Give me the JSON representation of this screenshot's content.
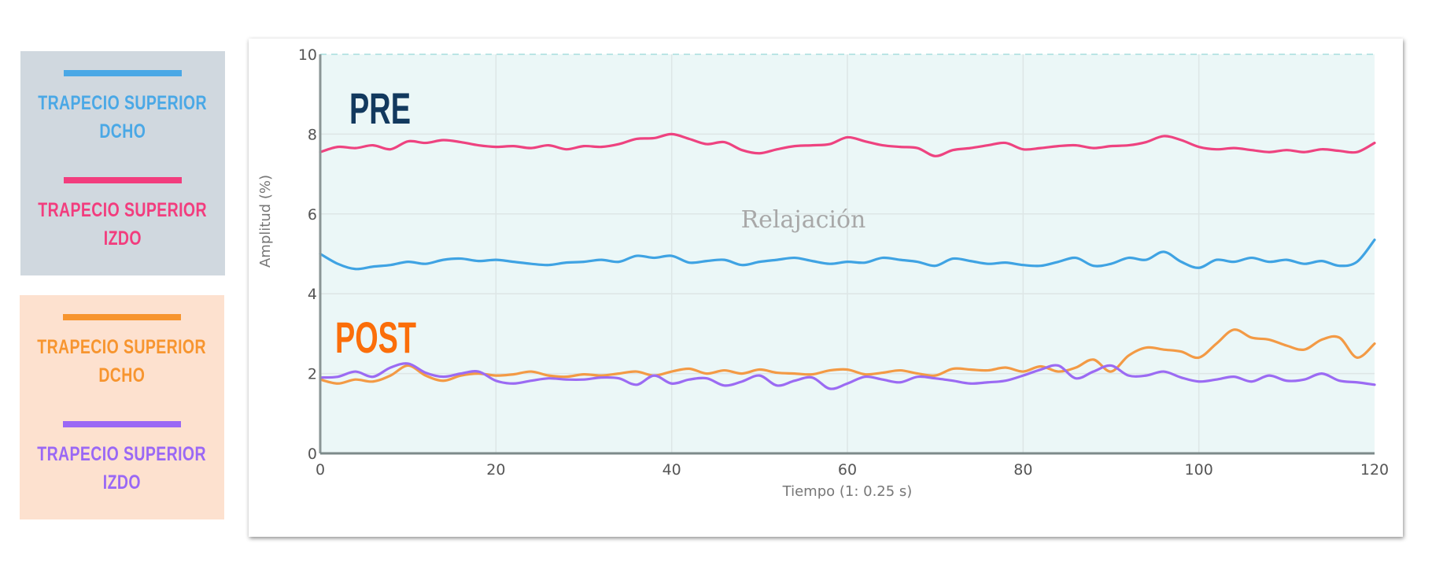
{
  "legend": {
    "pre_panel": {
      "background": "#d0d8df",
      "entries": [
        {
          "label_line1": "Trapecio superior",
          "label_line2": "Dcho",
          "color": "#4aa8e6"
        },
        {
          "label_line1": "Trapecio superior",
          "label_line2": "Izdo",
          "color": "#f23d7e"
        }
      ]
    },
    "post_panel": {
      "background": "#fde1cf",
      "entries": [
        {
          "label_line1": "Trapecio superior",
          "label_line2": "Dcho",
          "color": "#f7952f"
        },
        {
          "label_line1": "Trapecio superior",
          "label_line2": "Izdo",
          "color": "#9a68f5"
        }
      ]
    }
  },
  "annotations": {
    "pre_label": "PRE",
    "pre_color": "#12395e",
    "post_label": "POST",
    "post_color": "#fb6e0a",
    "watermark": "Relajación"
  },
  "chart_data": {
    "type": "line",
    "title": "",
    "xlabel": "Tiempo (1: 0.25 s)",
    "ylabel": "Amplitud (%)",
    "xlim": [
      0,
      120
    ],
    "ylim": [
      0,
      10
    ],
    "x_ticks": [
      0,
      20,
      40,
      60,
      80,
      100,
      120
    ],
    "y_ticks": [
      0,
      2,
      4,
      6,
      8,
      10
    ],
    "grid": true,
    "plot_background": "#ebf7f7",
    "legend_position": "left (external panels)",
    "annotations": [
      "PRE",
      "POST",
      "Relajación"
    ],
    "x": [
      0,
      2,
      4,
      6,
      8,
      10,
      12,
      14,
      16,
      18,
      20,
      22,
      24,
      26,
      28,
      30,
      32,
      34,
      36,
      38,
      40,
      42,
      44,
      46,
      48,
      50,
      52,
      54,
      56,
      58,
      60,
      62,
      64,
      66,
      68,
      70,
      72,
      74,
      76,
      78,
      80,
      82,
      84,
      86,
      88,
      90,
      92,
      94,
      96,
      98,
      100,
      102,
      104,
      106,
      108,
      110,
      112,
      114,
      116,
      118,
      120
    ],
    "series": [
      {
        "name": "PRE - Trapecio superior Dcho",
        "color": "#3fa3e3",
        "values": [
          5.0,
          4.75,
          4.62,
          4.68,
          4.72,
          4.8,
          4.75,
          4.85,
          4.88,
          4.82,
          4.85,
          4.8,
          4.75,
          4.72,
          4.78,
          4.8,
          4.85,
          4.8,
          4.95,
          4.9,
          4.95,
          4.78,
          4.82,
          4.85,
          4.72,
          4.8,
          4.85,
          4.9,
          4.82,
          4.75,
          4.8,
          4.78,
          4.9,
          4.85,
          4.8,
          4.7,
          4.88,
          4.82,
          4.75,
          4.78,
          4.72,
          4.7,
          4.8,
          4.9,
          4.7,
          4.75,
          4.9,
          4.85,
          5.05,
          4.8,
          4.65,
          4.85,
          4.8,
          4.9,
          4.8,
          4.85,
          4.75,
          4.82,
          4.7,
          4.8,
          5.35
        ]
      },
      {
        "name": "PRE - Trapecio superior Izdo",
        "color": "#ee4380",
        "values": [
          7.55,
          7.68,
          7.65,
          7.72,
          7.62,
          7.82,
          7.78,
          7.85,
          7.8,
          7.72,
          7.68,
          7.7,
          7.65,
          7.72,
          7.62,
          7.7,
          7.68,
          7.75,
          7.88,
          7.9,
          8.0,
          7.88,
          7.75,
          7.8,
          7.6,
          7.52,
          7.62,
          7.7,
          7.72,
          7.75,
          7.92,
          7.82,
          7.72,
          7.68,
          7.65,
          7.45,
          7.6,
          7.65,
          7.72,
          7.78,
          7.62,
          7.65,
          7.7,
          7.72,
          7.65,
          7.7,
          7.72,
          7.8,
          7.95,
          7.85,
          7.68,
          7.62,
          7.65,
          7.6,
          7.55,
          7.6,
          7.55,
          7.62,
          7.58,
          7.55,
          7.78
        ]
      },
      {
        "name": "POST - Trapecio superior Dcho",
        "color": "#f39a45",
        "values": [
          1.85,
          1.75,
          1.85,
          1.8,
          1.95,
          2.2,
          1.95,
          1.82,
          1.95,
          2.0,
          1.95,
          1.98,
          2.05,
          1.95,
          1.92,
          1.98,
          1.95,
          2.0,
          2.05,
          1.95,
          2.05,
          2.12,
          2.0,
          2.08,
          2.0,
          2.1,
          2.02,
          2.0,
          1.98,
          2.08,
          2.1,
          1.98,
          2.02,
          2.08,
          2.0,
          1.95,
          2.12,
          2.1,
          2.08,
          2.15,
          2.05,
          2.18,
          2.05,
          2.15,
          2.35,
          2.05,
          2.45,
          2.65,
          2.6,
          2.55,
          2.4,
          2.75,
          3.1,
          2.9,
          2.85,
          2.7,
          2.6,
          2.85,
          2.9,
          2.4,
          2.75
        ]
      },
      {
        "name": "POST - Trapecio superior Izdo",
        "color": "#9b6bf3",
        "values": [
          1.9,
          1.92,
          2.05,
          1.92,
          2.15,
          2.25,
          2.02,
          1.92,
          2.0,
          2.05,
          1.82,
          1.75,
          1.82,
          1.88,
          1.85,
          1.85,
          1.9,
          1.88,
          1.72,
          1.95,
          1.75,
          1.85,
          1.88,
          1.7,
          1.8,
          1.95,
          1.7,
          1.82,
          1.9,
          1.62,
          1.75,
          1.92,
          1.85,
          1.78,
          1.92,
          1.88,
          1.82,
          1.75,
          1.78,
          1.82,
          1.95,
          2.1,
          2.2,
          1.88,
          2.05,
          2.2,
          1.95,
          1.95,
          2.05,
          1.9,
          1.8,
          1.85,
          1.92,
          1.8,
          1.95,
          1.82,
          1.85,
          2.0,
          1.82,
          1.78,
          1.72
        ]
      }
    ]
  }
}
